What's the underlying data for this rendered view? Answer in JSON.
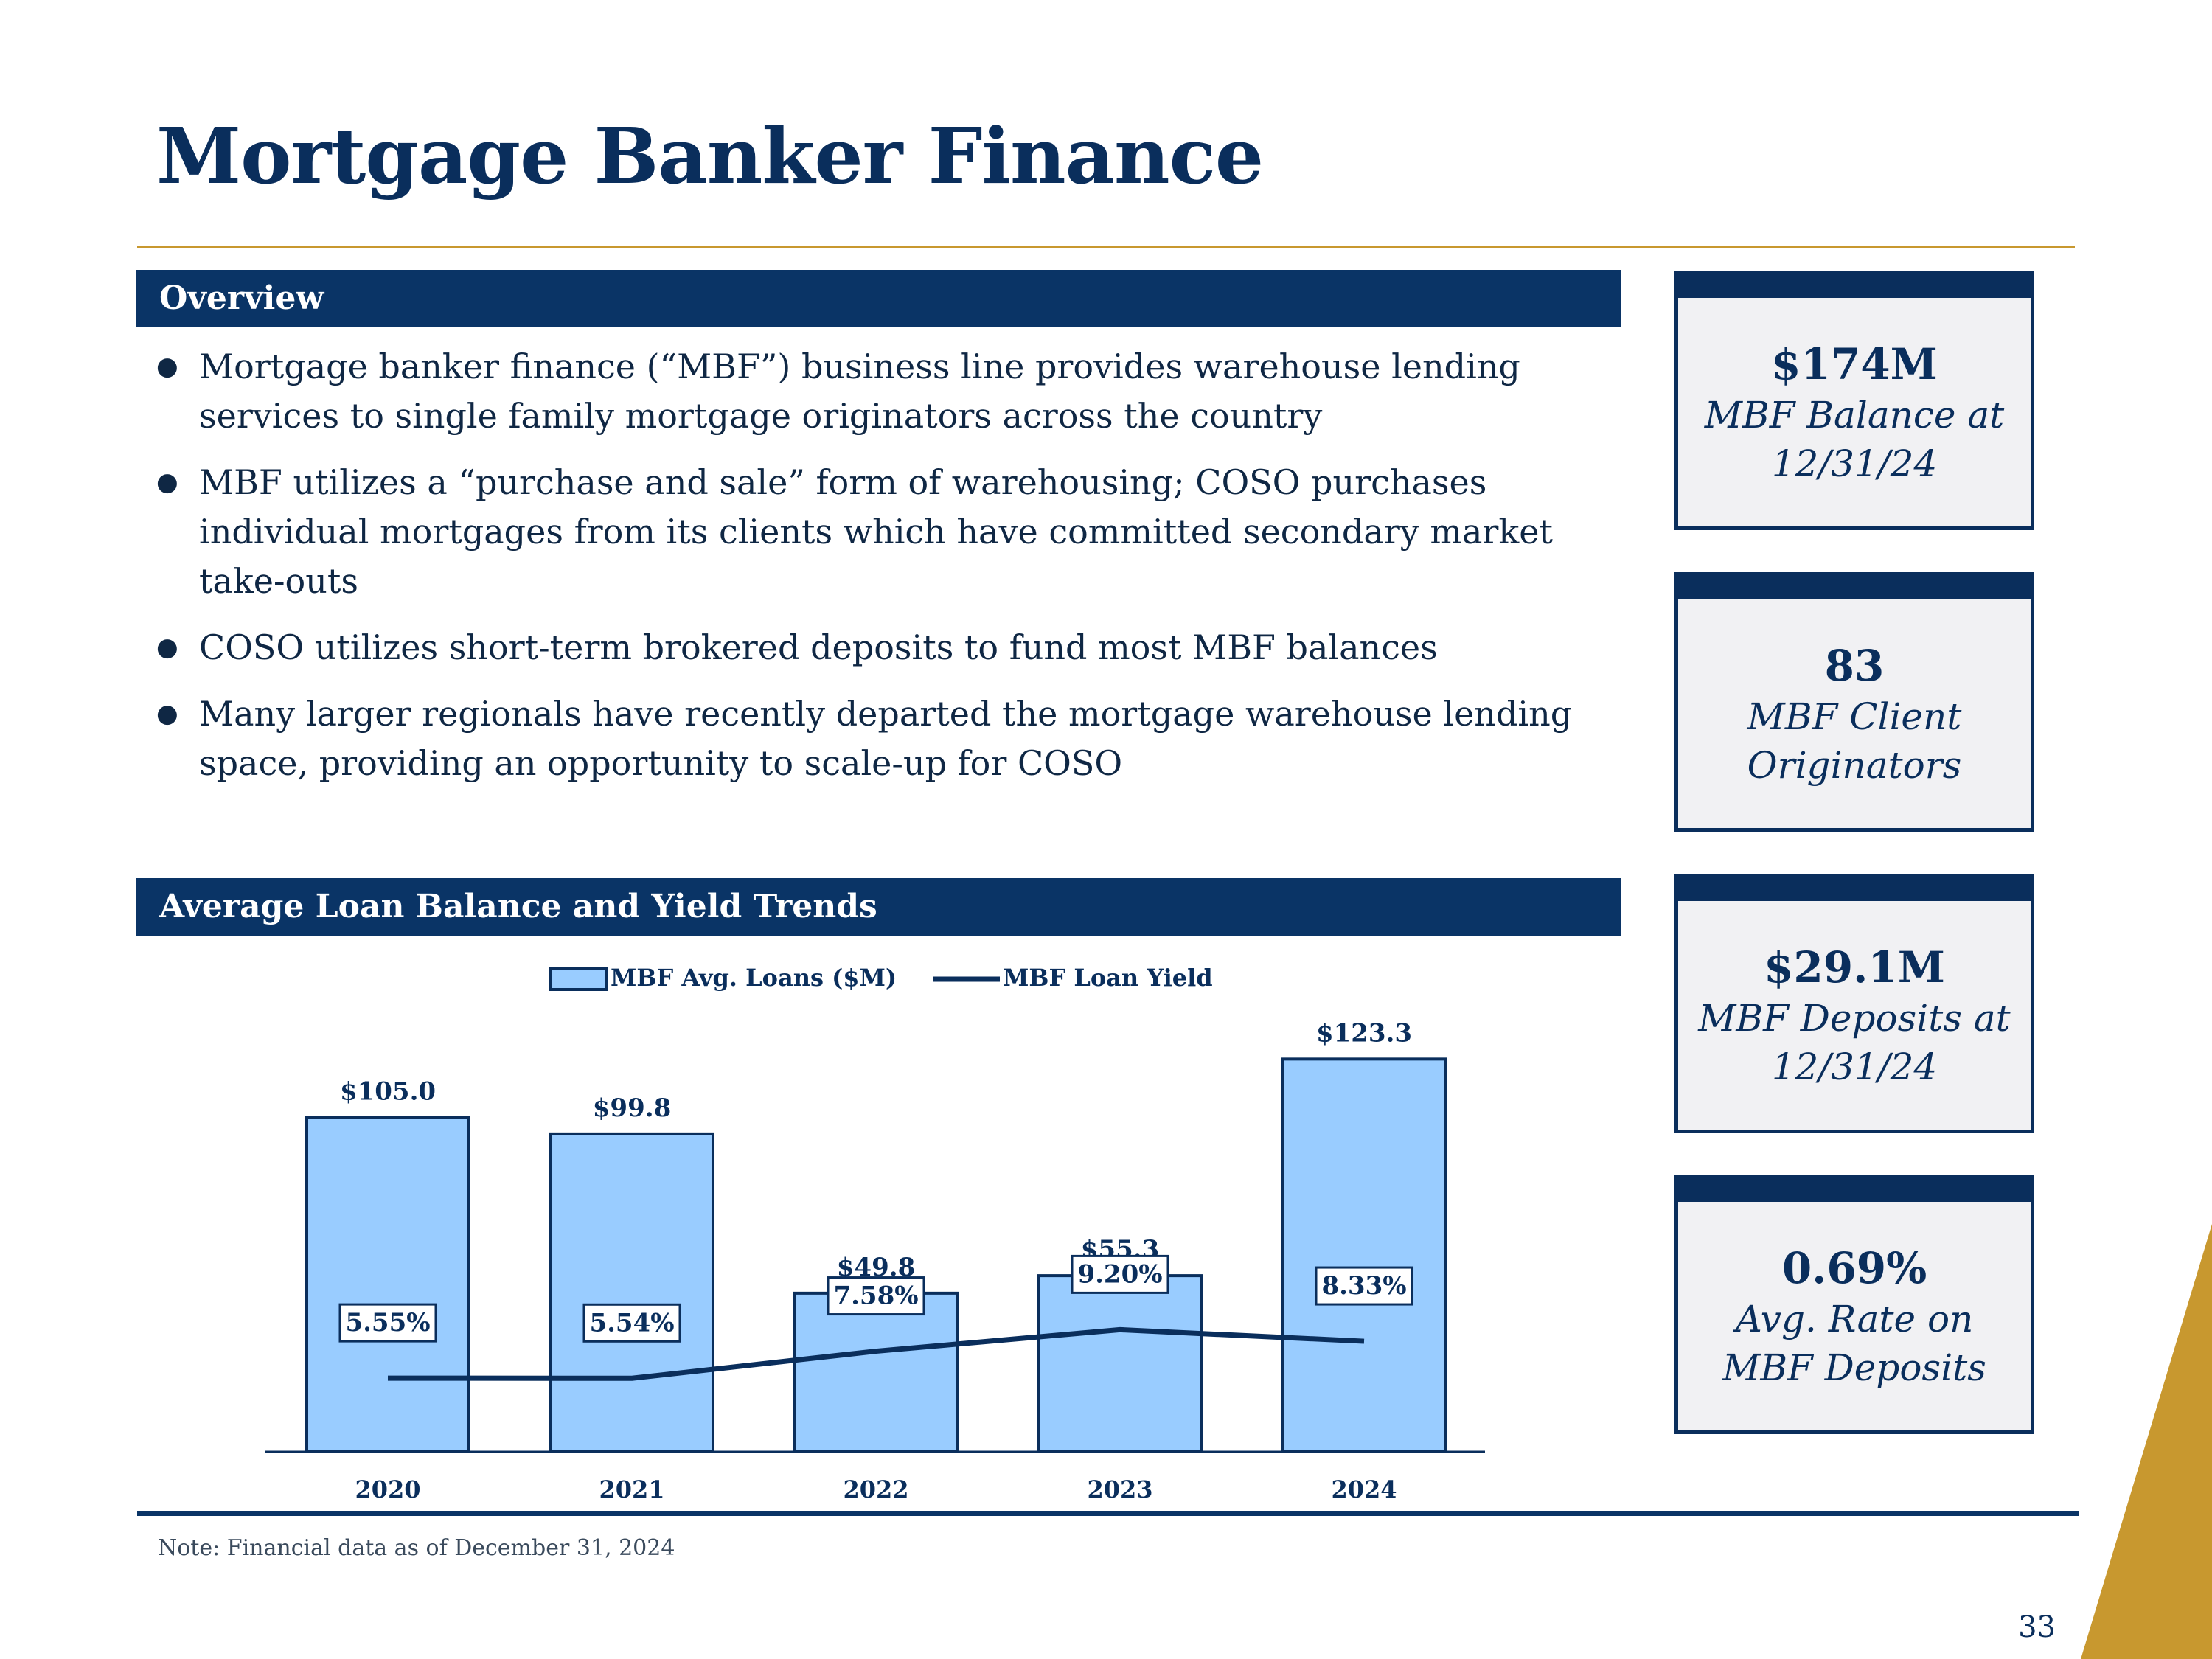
{
  "title": "Mortgage Banker Finance",
  "overview": {
    "header": "Overview",
    "bullets": [
      "Mortgage banker finance (“MBF”) business line provides warehouse lending services to single family mortgage originators across the country",
      "MBF utilizes a “purchase and sale” form of warehousing; COSO purchases individual mortgages from its clients which have committed secondary market take-outs",
      "COSO utilizes short-term brokered deposits to fund most MBF balances",
      "Many larger regionals have recently departed the mortgage warehouse lending space, providing an opportunity to scale-up for COSO"
    ]
  },
  "chart_section": {
    "header": "Average Loan Balance and Yield Trends"
  },
  "stats": [
    {
      "value": "$174M",
      "caption_line1": "MBF Balance at",
      "caption_line2": "12/31/24"
    },
    {
      "value": "83",
      "caption_line1": "MBF Client",
      "caption_line2": "Originators"
    },
    {
      "value": "$29.1M",
      "caption_line1": "MBF Deposits at",
      "caption_line2": "12/31/24"
    },
    {
      "value": "0.69%",
      "caption_line1": "Avg. Rate on",
      "caption_line2": "MBF Deposits"
    }
  ],
  "chart_data": {
    "type": "bar",
    "categories": [
      "2020",
      "2021",
      "2022",
      "2023",
      "2024"
    ],
    "series": [
      {
        "name": "MBF Avg. Loans ($M)",
        "type": "bar",
        "values": [
          105.0,
          99.8,
          49.8,
          55.3,
          123.3
        ],
        "labels": [
          "$105.0",
          "$99.8",
          "$49.8",
          "$55.3",
          "$123.3"
        ]
      },
      {
        "name": "MBF Loan Yield",
        "type": "line",
        "values": [
          5.55,
          5.54,
          7.58,
          9.2,
          8.33
        ],
        "labels": [
          "5.55%",
          "5.54%",
          "7.58%",
          "9.20%",
          "8.33%"
        ]
      }
    ],
    "legend": [
      "MBF Avg. Loans ($M)",
      "MBF Loan Yield"
    ],
    "legend_position": "top-center",
    "ylim_loans": [
      0,
      125
    ],
    "ylim_yield": [
      0,
      30
    ],
    "bar_color": "#99ccff",
    "line_color": "#0a2e5c"
  },
  "note": "Note:  Financial data as of December 31, 2024",
  "page_number": "33",
  "colors": {
    "navy": "#0a3466",
    "gold": "#c8982f",
    "card_bg": "#f1f1f3"
  }
}
